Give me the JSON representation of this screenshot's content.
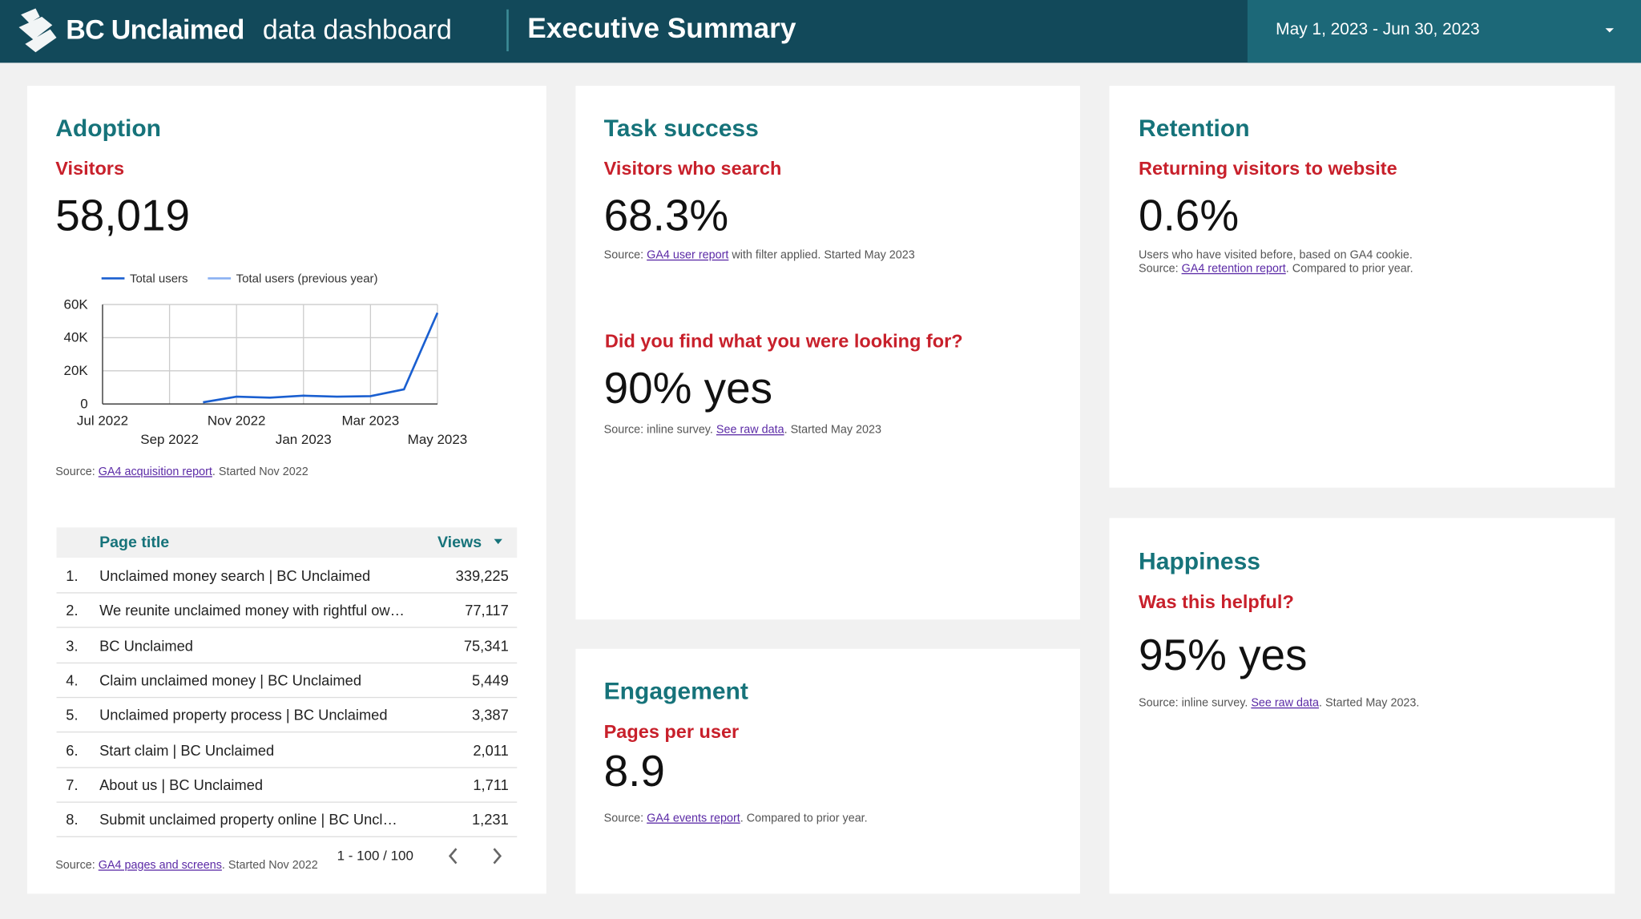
{
  "header": {
    "brand": "BC Unclaimed",
    "subtitle": "data dashboard",
    "title": "Executive Summary",
    "date_range": "May 1, 2023 - Jun 30, 2023"
  },
  "adoption": {
    "heading": "Adoption",
    "metric": "Visitors",
    "value": "58,019",
    "chart_data": {
      "type": "line",
      "categories": [
        "Jul 2022",
        null,
        "Sep 2022",
        null,
        "Nov 2022",
        null,
        "Jan 2023",
        null,
        "Mar 2023",
        null,
        "May 2023"
      ],
      "series": [
        {
          "name": "Total users",
          "color": "#1a5fd0",
          "values": [
            null,
            null,
            null,
            1000,
            4400,
            3800,
            5000,
            4400,
            4700,
            8800,
            55000
          ]
        },
        {
          "name": "Total users (previous year)",
          "color": "#8ab0f2",
          "values": [
            null,
            null,
            null,
            null,
            null,
            null,
            null,
            null,
            null,
            null,
            null
          ]
        }
      ],
      "ylim": [
        0,
        60000
      ],
      "yticks": [
        0,
        {
          "value": 20000,
          "label": "20K"
        },
        {
          "value": 40000,
          "label": "40K"
        },
        {
          "value": 60000,
          "label": "60K"
        }
      ],
      "grid": true
    },
    "source": {
      "before": "Source: ",
      "link": "GA4 acquisition report",
      "after": ". Started Nov 2022"
    },
    "table": {
      "columns": [
        "Page title",
        "Views"
      ],
      "rows": [
        [
          "1.",
          "Unclaimed money search | BC Unclaimed",
          "339,225"
        ],
        [
          "2.",
          "We reunite unclaimed money with rightful ow…",
          "77,117"
        ],
        [
          "3.",
          "BC Unclaimed",
          "75,341"
        ],
        [
          "4.",
          "Claim unclaimed money | BC Unclaimed",
          "5,449"
        ],
        [
          "5.",
          "Unclaimed property process | BC Unclaimed",
          "3,387"
        ],
        [
          "6.",
          "Start claim | BC Unclaimed",
          "2,011"
        ],
        [
          "7.",
          "About us | BC Unclaimed",
          "1,711"
        ],
        [
          "8.",
          "Submit unclaimed property online | BC Uncl…",
          "1,231"
        ]
      ],
      "pagination": "1 - 100 / 100",
      "source": {
        "before": "Source: ",
        "link": "GA4 pages and screens",
        "after": ". Started Nov 2022"
      }
    }
  },
  "task_success": {
    "heading": "Task success",
    "metric": "Visitors who search",
    "value": "68.3%",
    "source": {
      "before": "Source: ",
      "link": "GA4 user report",
      "after": " with filter applied. Started May 2023"
    },
    "survey_question": "Did you find what you were looking for?",
    "survey_value": "90% yes",
    "survey_source": {
      "before": "Source: inline survey. ",
      "link": "See raw data",
      "after": ". Started May 2023"
    }
  },
  "engagement": {
    "heading": "Engagement",
    "metric": "Pages per user",
    "value": "8.9",
    "source": {
      "before": "Source: ",
      "link": "GA4 events report",
      "after": ". Compared to prior year."
    }
  },
  "retention": {
    "heading": "Retention",
    "metric": "Returning visitors to website",
    "value": "0.6%",
    "note": "Users who have visited before, based on GA4 cookie.",
    "source": {
      "before": "Source: ",
      "link": "GA4 retention report",
      "after": ". Compared to prior year."
    }
  },
  "happiness": {
    "heading": "Happiness",
    "metric": "Was this helpful?",
    "value": "95% yes",
    "source": {
      "before": "Source: inline survey. ",
      "link": "See raw data",
      "after": ". Started May 2023."
    }
  }
}
